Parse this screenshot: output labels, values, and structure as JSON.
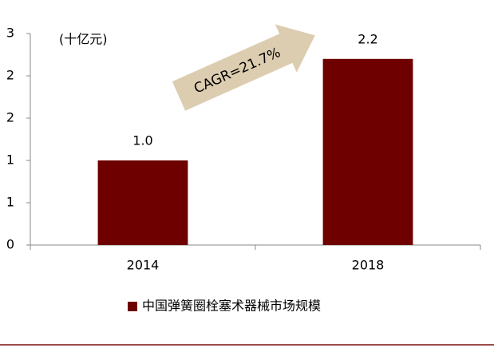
{
  "chart_data": {
    "type": "bar",
    "annotations": [
      "(十亿元)",
      "CAGR=21.7%"
    ],
    "categories": [
      "2014",
      "2018"
    ],
    "series": [
      {
        "name": "中国弹簧圈栓塞术器械市场规模",
        "color": "#6e0000",
        "values": [
          1.0,
          2.2
        ],
        "value_labels": [
          "1.0",
          "2.2"
        ]
      }
    ],
    "ylim": [
      0,
      2.5
    ],
    "yticks": [
      0,
      {
        "value": 0.5,
        "label": "1"
      },
      1,
      {
        "value": 1.5,
        "label": "2"
      },
      2,
      {
        "value": 2.5,
        "label": "3"
      }
    ],
    "grid": false,
    "legend": "bottom"
  }
}
